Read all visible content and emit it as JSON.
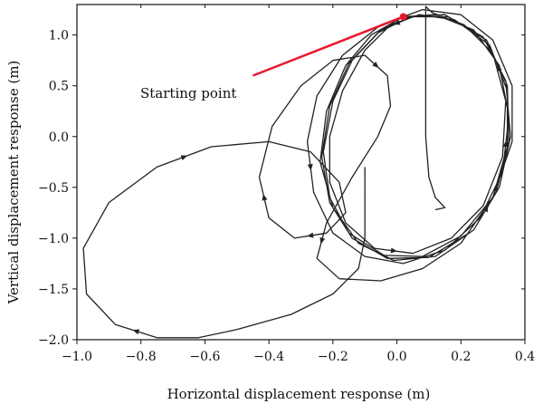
{
  "chart_data": {
    "type": "line",
    "title": "",
    "xlabel": "Horizontal displacement response (m)",
    "ylabel": "Vertical displacement response (m)",
    "xlim": [
      -1.0,
      0.4
    ],
    "ylim": [
      -2.0,
      1.3
    ],
    "x_ticks": [
      -1.0,
      -0.8,
      -0.6,
      -0.4,
      -0.2,
      0.0,
      0.2,
      0.4
    ],
    "y_ticks": [
      -2.0,
      -1.5,
      -1.0,
      -0.5,
      0.0,
      0.5,
      1.0
    ],
    "x_tick_labels": [
      "−1.0",
      "−0.8",
      "−0.6",
      "−0.4",
      "−0.2",
      "0.0",
      "0.2",
      "0.4"
    ],
    "y_tick_labels": [
      "−2.0",
      "−1.5",
      "−1.0",
      "−0.5",
      "0.0",
      "0.5",
      "1.0"
    ],
    "grid": false,
    "colors": {
      "trajectory": "#222222",
      "start_marker": "#e8192c",
      "axis": "#111111"
    },
    "series": [
      {
        "values": [
          [
            -0.1,
            -0.3
          ],
          [
            -0.1,
            -1.0
          ],
          [
            -0.12,
            -1.3
          ],
          [
            -0.2,
            -1.55
          ],
          [
            -0.33,
            -1.75
          ],
          [
            -0.5,
            -1.9
          ],
          [
            -0.62,
            -1.98
          ],
          [
            -0.75,
            -1.98
          ],
          [
            -0.88,
            -1.85
          ],
          [
            -0.97,
            -1.55
          ],
          [
            -0.98,
            -1.1
          ],
          [
            -0.9,
            -0.65
          ],
          [
            -0.75,
            -0.3
          ],
          [
            -0.58,
            -0.1
          ],
          [
            -0.4,
            -0.05
          ],
          [
            -0.27,
            -0.15
          ],
          [
            -0.18,
            -0.45
          ],
          [
            -0.16,
            -0.75
          ],
          [
            -0.22,
            -0.95
          ],
          [
            -0.32,
            -1.0
          ],
          [
            -0.4,
            -0.8
          ],
          [
            -0.43,
            -0.4
          ],
          [
            -0.39,
            0.1
          ],
          [
            -0.3,
            0.5
          ],
          [
            -0.2,
            0.75
          ],
          [
            -0.1,
            0.8
          ],
          [
            -0.03,
            0.6
          ],
          [
            -0.02,
            0.3
          ],
          [
            -0.06,
            0.0
          ],
          [
            -0.14,
            -0.4
          ],
          [
            -0.22,
            -0.85
          ],
          [
            -0.25,
            -1.2
          ],
          [
            -0.18,
            -1.4
          ],
          [
            -0.05,
            -1.42
          ],
          [
            0.08,
            -1.3
          ],
          [
            0.2,
            -1.05
          ],
          [
            0.3,
            -0.6
          ],
          [
            0.36,
            -0.05
          ],
          [
            0.36,
            0.5
          ],
          [
            0.3,
            0.95
          ],
          [
            0.2,
            1.2
          ],
          [
            0.08,
            1.25
          ],
          [
            -0.05,
            1.1
          ],
          [
            -0.17,
            0.8
          ],
          [
            -0.25,
            0.4
          ],
          [
            -0.28,
            -0.05
          ],
          [
            -0.26,
            -0.55
          ],
          [
            -0.2,
            -0.95
          ],
          [
            -0.1,
            -1.18
          ],
          [
            0.02,
            -1.25
          ],
          [
            0.15,
            -1.12
          ],
          [
            0.26,
            -0.8
          ],
          [
            0.33,
            -0.35
          ],
          [
            0.35,
            0.2
          ],
          [
            0.32,
            0.7
          ],
          [
            0.24,
            1.05
          ],
          [
            0.12,
            1.2
          ],
          [
            0.02,
            1.18
          ],
          [
            -0.08,
            1.0
          ],
          [
            -0.16,
            0.7
          ],
          [
            -0.22,
            0.25
          ],
          [
            -0.24,
            -0.25
          ],
          [
            -0.2,
            -0.7
          ],
          [
            -0.12,
            -1.05
          ],
          [
            -0.01,
            -1.22
          ],
          [
            0.12,
            -1.18
          ],
          [
            0.24,
            -0.92
          ],
          [
            0.32,
            -0.5
          ],
          [
            0.355,
            0.0
          ],
          [
            0.34,
            0.55
          ],
          [
            0.27,
            0.98
          ],
          [
            0.15,
            1.2
          ],
          [
            0.04,
            1.18
          ],
          [
            -0.06,
            1.02
          ],
          [
            -0.15,
            0.72
          ],
          [
            -0.21,
            0.3
          ],
          [
            -0.235,
            -0.2
          ],
          [
            -0.21,
            -0.65
          ],
          [
            -0.14,
            -1.0
          ],
          [
            -0.03,
            -1.2
          ],
          [
            0.1,
            -1.19
          ],
          [
            0.22,
            -0.96
          ],
          [
            0.31,
            -0.55
          ],
          [
            0.35,
            -0.05
          ],
          [
            0.345,
            0.5
          ],
          [
            0.28,
            0.95
          ],
          [
            0.16,
            1.18
          ],
          [
            0.05,
            1.18
          ],
          [
            -0.05,
            1.05
          ],
          [
            -0.14,
            0.75
          ],
          [
            -0.2,
            0.35
          ],
          [
            -0.23,
            -0.15
          ],
          [
            -0.21,
            -0.6
          ],
          [
            -0.15,
            -0.95
          ],
          [
            -0.04,
            -1.17
          ],
          [
            0.08,
            -1.18
          ],
          [
            0.2,
            -0.98
          ],
          [
            0.3,
            -0.6
          ],
          [
            0.345,
            -0.1
          ],
          [
            0.345,
            0.45
          ],
          [
            0.29,
            0.9
          ],
          [
            0.18,
            1.15
          ],
          [
            0.07,
            1.2
          ],
          [
            -0.02,
            1.1
          ],
          [
            -0.1,
            0.85
          ],
          [
            -0.17,
            0.45
          ],
          [
            -0.21,
            0.0
          ],
          [
            -0.21,
            -0.45
          ],
          [
            -0.16,
            -0.85
          ],
          [
            -0.07,
            -1.1
          ],
          [
            0.05,
            -1.15
          ],
          [
            0.17,
            -1.0
          ],
          [
            0.27,
            -0.68
          ],
          [
            0.33,
            -0.2
          ],
          [
            0.34,
            0.35
          ],
          [
            0.3,
            0.82
          ],
          [
            0.21,
            1.1
          ],
          [
            0.11,
            1.22
          ],
          [
            0.09,
            1.28
          ],
          [
            0.09,
            0.6
          ],
          [
            0.09,
            0.0
          ],
          [
            0.1,
            -0.4
          ],
          [
            0.12,
            -0.6
          ],
          [
            0.15,
            -0.7
          ],
          [
            0.12,
            -0.72
          ]
        ]
      }
    ],
    "arrow_indices": [
      8,
      13,
      19,
      21,
      26,
      31,
      46,
      53,
      67,
      88,
      100,
      110
    ],
    "starting_point": {
      "x": 0.02,
      "y": 1.18
    },
    "annotation": {
      "text": "Starting point",
      "pointer_from": {
        "x": -0.45,
        "y": 0.6
      }
    }
  }
}
